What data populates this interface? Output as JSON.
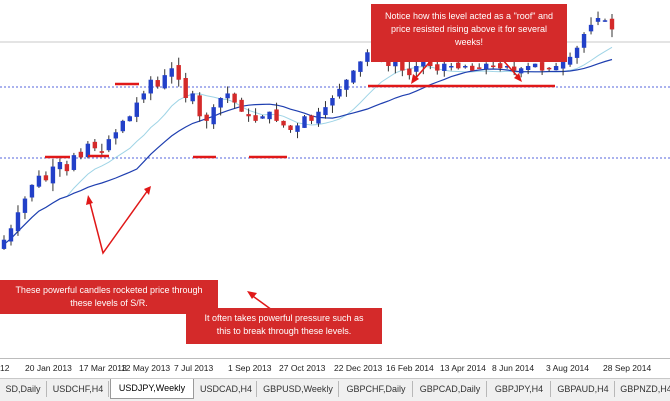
{
  "colors": {
    "bull_candle": "#2240c8",
    "bear_candle": "#d42a2a",
    "callout_bg": "#d42a2a",
    "ma_fast": "#9fd4e6",
    "ma_slow": "#1f3fb0",
    "sr_line": "#5566dd",
    "marker": "#e01818"
  },
  "callouts": {
    "top": "Notice how this level acted as a \"roof\" and price resisted rising above it for several weeks!",
    "left": "These powerful candles rocketed price through these levels of S/R.",
    "bottom": "It often takes powerful pressure such as this to break through these levels."
  },
  "date_axis": {
    "labels": [
      "12",
      "20 Jan 2013",
      "17 Mar 2013",
      "12 May 2013",
      "7 Jul 2013",
      "1 Sep 2013",
      "27 Oct 2013",
      "22 Dec 2013",
      "16 Feb 2014",
      "13 Apr 2014",
      "8 Jun 2014",
      "3 Aug 2014",
      "28 Sep 2014"
    ]
  },
  "tabs": [
    {
      "label": "SD,Daily",
      "active": false
    },
    {
      "label": "USDCHF,H4",
      "active": false
    },
    {
      "label": "USDJPY,Weekly",
      "active": true
    },
    {
      "label": "USDCAD,H4",
      "active": false
    },
    {
      "label": "GBPUSD,Weekly",
      "active": false
    },
    {
      "label": "GBPCHF,Daily",
      "active": false
    },
    {
      "label": "GBPCAD,Daily",
      "active": false
    },
    {
      "label": "GBPJPY,H4",
      "active": false
    },
    {
      "label": "GBPAUD,H4",
      "active": false
    },
    {
      "label": "GBPNZD,H4",
      "active": false
    }
  ],
  "chart_data": {
    "type": "candlestick",
    "symbol": "USDJPY",
    "timeframe": "Weekly",
    "support_resistance_levels": [
      "upper dotted level (roof)",
      "lower dotted level"
    ],
    "moving_averages": [
      "fast MA (light blue)",
      "slow MA (dark blue)"
    ],
    "candles_trend": [
      0.08,
      0.13,
      0.2,
      0.26,
      0.32,
      0.36,
      0.34,
      0.4,
      0.42,
      0.38,
      0.45,
      0.44,
      0.5,
      0.48,
      0.46,
      0.52,
      0.55,
      0.6,
      0.62,
      0.68,
      0.72,
      0.78,
      0.75,
      0.8,
      0.83,
      0.78,
      0.7,
      0.72,
      0.62,
      0.6,
      0.66,
      0.7,
      0.72,
      0.68,
      0.64,
      0.62,
      0.6,
      0.62,
      0.64,
      0.6,
      0.58,
      0.56,
      0.58,
      0.62,
      0.6,
      0.64,
      0.66,
      0.7,
      0.74,
      0.78,
      0.82,
      0.86,
      0.9,
      0.92,
      0.88,
      0.84,
      0.86,
      0.82,
      0.8,
      0.84,
      0.86,
      0.84,
      0.82,
      0.85,
      0.84,
      0.83,
      0.84,
      0.82,
      0.83,
      0.85,
      0.84,
      0.83,
      0.84,
      0.82,
      0.83,
      0.84,
      0.85,
      0.82,
      0.83,
      0.84,
      0.86,
      0.88,
      0.92,
      0.98,
      1.02,
      1.05,
      1.04,
      1.0
    ]
  }
}
